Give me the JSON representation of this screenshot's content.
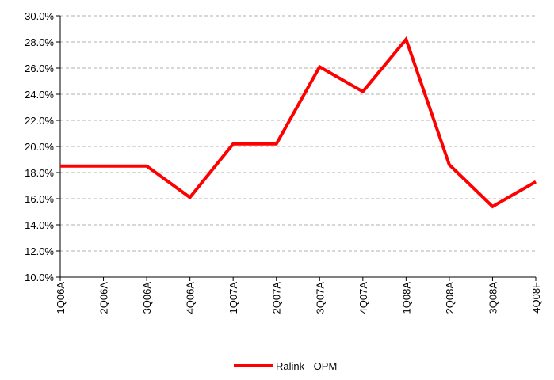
{
  "chart_data": {
    "type": "line",
    "categories": [
      "1Q06A",
      "2Q06A",
      "3Q06A",
      "4Q06A",
      "1Q07A",
      "2Q07A",
      "3Q07A",
      "4Q07A",
      "1Q08A",
      "2Q08A",
      "3Q08A",
      "4Q08F"
    ],
    "series": [
      {
        "name": "Ralink - OPM",
        "color": "#ff0000",
        "values": [
          18.5,
          18.5,
          18.5,
          16.1,
          20.2,
          20.2,
          26.1,
          24.2,
          28.2,
          18.6,
          15.4,
          17.3
        ]
      }
    ],
    "ylim": [
      10,
      30
    ],
    "yticks": [
      {
        "value": 10,
        "label": "10.0%"
      },
      {
        "value": 12,
        "label": "12.0%"
      },
      {
        "value": 14,
        "label": "14.0%"
      },
      {
        "value": 16,
        "label": "16.0%"
      },
      {
        "value": 18,
        "label": "18.0%"
      },
      {
        "value": 20,
        "label": "20.0%"
      },
      {
        "value": 22,
        "label": "22.0%"
      },
      {
        "value": 24,
        "label": "24.0%"
      },
      {
        "value": 26,
        "label": "26.0%"
      },
      {
        "value": 28,
        "label": "28.0%"
      },
      {
        "value": 30,
        "label": "30.0%"
      }
    ],
    "grid": true,
    "legend": "bottom"
  }
}
